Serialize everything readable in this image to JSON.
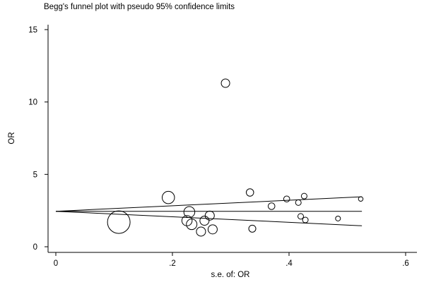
{
  "chart_data": {
    "type": "scatter",
    "title": "Begg's funnel plot with pseudo 95% confidence limits",
    "xlabel": "s.e. of: OR",
    "ylabel": "OR",
    "xlim": [
      0,
      0.6
    ],
    "ylim": [
      0,
      15
    ],
    "xticks": [
      {
        "value": 0,
        "label": "0"
      },
      {
        "value": 0.2,
        "label": ".2"
      },
      {
        "value": 0.4,
        "label": ".4"
      },
      {
        "value": 0.6,
        "label": ".6"
      }
    ],
    "yticks": [
      {
        "value": 0,
        "label": "0"
      },
      {
        "value": 5,
        "label": "5"
      },
      {
        "value": 10,
        "label": "10"
      },
      {
        "value": 15,
        "label": "15"
      }
    ],
    "grid": false,
    "pooled_estimate": 2.45,
    "limit_lines_max_x": 0.525,
    "limit_lines": {
      "upper": [
        {
          "x": 0,
          "y": 2.45
        },
        {
          "x": 0.525,
          "y": 3.45
        }
      ],
      "lower": [
        {
          "x": 0,
          "y": 2.45
        },
        {
          "x": 0.525,
          "y": 1.45
        }
      ]
    },
    "points": [
      {
        "x": 0.108,
        "y": 1.7,
        "size": 3.2
      },
      {
        "x": 0.193,
        "y": 3.4,
        "size": 1.75
      },
      {
        "x": 0.225,
        "y": 1.8,
        "size": 1.45
      },
      {
        "x": 0.229,
        "y": 2.4,
        "size": 1.55
      },
      {
        "x": 0.233,
        "y": 1.55,
        "size": 1.5
      },
      {
        "x": 0.249,
        "y": 1.05,
        "size": 1.3
      },
      {
        "x": 0.255,
        "y": 1.8,
        "size": 1.3
      },
      {
        "x": 0.264,
        "y": 2.15,
        "size": 1.3
      },
      {
        "x": 0.269,
        "y": 1.2,
        "size": 1.3
      },
      {
        "x": 0.291,
        "y": 11.3,
        "size": 1.2
      },
      {
        "x": 0.333,
        "y": 3.75,
        "size": 1.05
      },
      {
        "x": 0.337,
        "y": 1.25,
        "size": 1.0
      },
      {
        "x": 0.37,
        "y": 2.8,
        "size": 0.95
      },
      {
        "x": 0.396,
        "y": 3.3,
        "size": 0.85
      },
      {
        "x": 0.416,
        "y": 3.05,
        "size": 0.8
      },
      {
        "x": 0.42,
        "y": 2.1,
        "size": 0.8
      },
      {
        "x": 0.426,
        "y": 3.5,
        "size": 0.8
      },
      {
        "x": 0.428,
        "y": 1.85,
        "size": 0.8
      },
      {
        "x": 0.484,
        "y": 1.95,
        "size": 0.7
      },
      {
        "x": 0.523,
        "y": 3.3,
        "size": 0.65
      }
    ]
  }
}
